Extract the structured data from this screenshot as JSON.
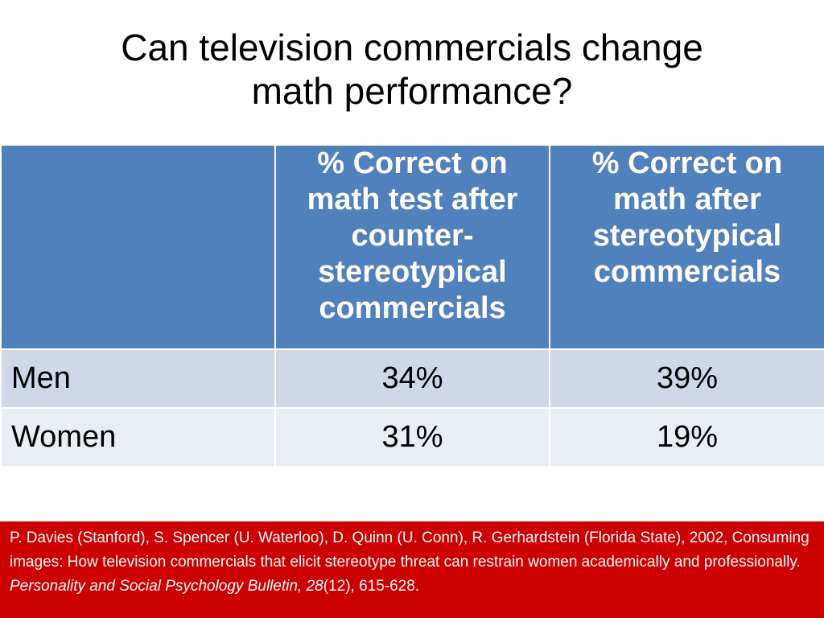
{
  "title": {
    "line1": "Can television commercials change",
    "line2": "math performance?"
  },
  "table": {
    "headers": [
      "",
      "% Correct on math test after counter-stereotypical commercials",
      "% Correct on math after stereotypical commercials"
    ],
    "header_lines": {
      "col1": [
        "% Correct on",
        "math test after",
        "counter-",
        "stereotypical",
        "commercials"
      ],
      "col2": [
        "% Correct on",
        "math after",
        "stereotypical",
        "commercials"
      ]
    },
    "rows": [
      {
        "label": "Men",
        "counter_stereotypical": "34%",
        "stereotypical": "39%"
      },
      {
        "label": "Women",
        "counter_stereotypical": "31%",
        "stereotypical": "19%"
      }
    ]
  },
  "citation": {
    "text": "P. Davies (Stanford), S. Spencer (U. Waterloo), D. Quinn (U. Conn), R. Gerhardstein (Florida State), 2002, Consuming images: How television commercials that elicit stereotype threat can restrain women academically and professionally.",
    "journal": "Personality and Social Psychology Bulletin, 28",
    "issue_pages": "(12), 615-628."
  },
  "colors": {
    "header_bg": "#4f81bd",
    "row_men_bg": "#d0d8e8",
    "row_women_bg": "#e9edf4",
    "citation_bg": "#cc0000"
  }
}
